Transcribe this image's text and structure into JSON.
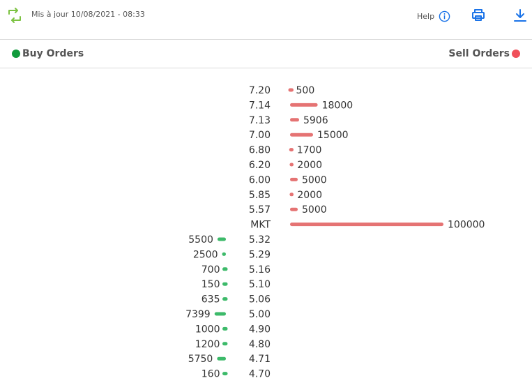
{
  "header": {
    "refresh_icon": "refresh-icon",
    "updated": "Mis à jour 10/08/2021 - 08:33",
    "help_label": "Help",
    "help_icon": "info-icon",
    "print_icon": "print-icon",
    "download_icon": "download-icon",
    "accent_color": "#1a73e8"
  },
  "legend": {
    "buy_label": "Buy Orders",
    "sell_label": "Sell Orders",
    "buy_color": "#2db55d",
    "sell_color": "#f0505a"
  },
  "chart_data": {
    "type": "bar",
    "title": "",
    "sell_color": "#e57373",
    "buy_color": "#3dba6a",
    "sell": [
      {
        "price": "7.20",
        "quantity": 500
      },
      {
        "price": "7.14",
        "quantity": 18000
      },
      {
        "price": "7.13",
        "quantity": 5906
      },
      {
        "price": "7.00",
        "quantity": 15000
      },
      {
        "price": "6.80",
        "quantity": 1700
      },
      {
        "price": "6.20",
        "quantity": 2000
      },
      {
        "price": "6.00",
        "quantity": 5000
      },
      {
        "price": "5.85",
        "quantity": 2000
      },
      {
        "price": "5.57",
        "quantity": 5000
      },
      {
        "price": "MKT",
        "quantity": 100000
      }
    ],
    "buy": [
      {
        "price": "5.32",
        "quantity": 5500
      },
      {
        "price": "5.29",
        "quantity": 2500
      },
      {
        "price": "5.16",
        "quantity": 700
      },
      {
        "price": "5.10",
        "quantity": 150
      },
      {
        "price": "5.06",
        "quantity": 635
      },
      {
        "price": "5.00",
        "quantity": 7399
      },
      {
        "price": "4.90",
        "quantity": 1000
      },
      {
        "price": "4.80",
        "quantity": 1200
      },
      {
        "price": "4.71",
        "quantity": 5750
      },
      {
        "price": "4.70",
        "quantity": 160
      }
    ]
  }
}
